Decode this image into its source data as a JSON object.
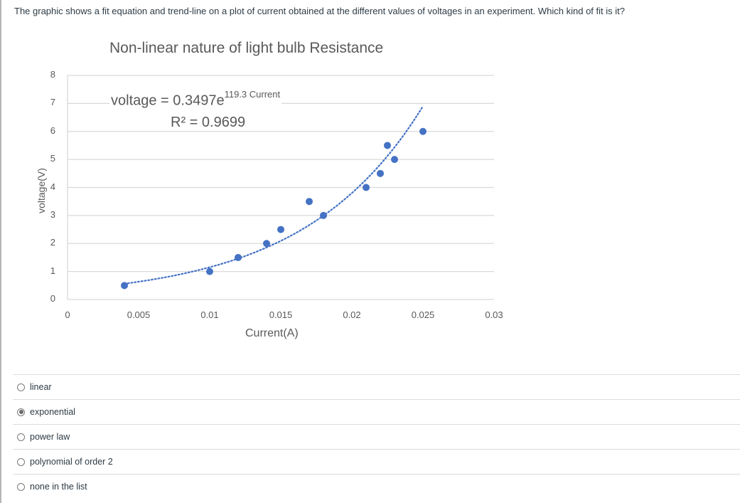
{
  "question": {
    "text": "The graphic shows a fit equation and trend-line on a plot of current obtained at the different values of voltages in an experiment. Which kind of fit is it?"
  },
  "chart": {
    "title": "Non-linear nature of light bulb Resistance",
    "equation_prefix": "voltage = 0.3497e",
    "equation_exponent": "119.3 Current",
    "r_squared": "R² = 0.9699",
    "xlabel": "Current(A)",
    "ylabel": "voltage(V)",
    "x_ticks": [
      "0",
      "0.005",
      "0.01",
      "0.015",
      "0.02",
      "0.025",
      "0.03"
    ],
    "y_ticks": [
      "0",
      "1",
      "2",
      "3",
      "4",
      "5",
      "6",
      "7",
      "8"
    ],
    "colors": {
      "marker": "#4472c4",
      "trendline": "#4472c4",
      "grid": "#d9d9d9",
      "text": "#595959"
    }
  },
  "chart_data": {
    "type": "scatter",
    "title": "Non-linear nature of light bulb Resistance",
    "xlabel": "Current(A)",
    "ylabel": "voltage(V)",
    "xlim": [
      0,
      0.03
    ],
    "ylim": [
      0,
      8
    ],
    "x_ticks": [
      0,
      0.005,
      0.01,
      0.015,
      0.02,
      0.025,
      0.03
    ],
    "y_ticks": [
      0,
      1,
      2,
      3,
      4,
      5,
      6,
      7,
      8
    ],
    "grid": "horizontal",
    "series": [
      {
        "name": "voltage",
        "x": [
          0.004,
          0.01,
          0.012,
          0.014,
          0.015,
          0.017,
          0.018,
          0.021,
          0.022,
          0.0225,
          0.023,
          0.025
        ],
        "y": [
          0.5,
          1.0,
          1.5,
          2.0,
          2.5,
          3.5,
          3.0,
          4.0,
          4.5,
          5.5,
          5.0,
          6.0
        ]
      }
    ],
    "trendline": {
      "type": "exponential",
      "equation": "voltage = 0.3497e^(119.3 Current)",
      "a": 0.3497,
      "b": 119.3,
      "r_squared": 0.9699,
      "x_range": [
        0.004,
        0.025
      ],
      "style": "dotted"
    }
  },
  "answers": {
    "options": [
      {
        "label": "linear",
        "selected": false
      },
      {
        "label": "exponential",
        "selected": true
      },
      {
        "label": "power law",
        "selected": false
      },
      {
        "label": "polynomial of order 2",
        "selected": false
      },
      {
        "label": "none in the list",
        "selected": false
      }
    ]
  }
}
